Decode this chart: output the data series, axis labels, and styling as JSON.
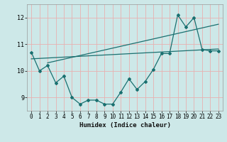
{
  "xlabel": "Humidex (Indice chaleur)",
  "ylabel": "",
  "bg_color": "#cde8e8",
  "grid_color": "#e8b0b0",
  "line_color": "#1a7070",
  "xlim": [
    -0.5,
    23.5
  ],
  "ylim": [
    8.5,
    12.5
  ],
  "xticks": [
    0,
    1,
    2,
    3,
    4,
    5,
    6,
    7,
    8,
    9,
    10,
    11,
    12,
    13,
    14,
    15,
    16,
    17,
    18,
    19,
    20,
    21,
    22,
    23
  ],
  "yticks": [
    9,
    10,
    11,
    12
  ],
  "data_x": [
    0,
    1,
    2,
    3,
    4,
    5,
    6,
    7,
    8,
    9,
    10,
    11,
    12,
    13,
    14,
    15,
    16,
    17,
    18,
    19,
    20,
    21,
    22,
    23
  ],
  "data_y": [
    10.7,
    10.0,
    10.2,
    9.55,
    9.8,
    9.0,
    8.75,
    8.9,
    8.9,
    8.75,
    8.75,
    9.2,
    9.7,
    9.3,
    9.6,
    10.05,
    10.65,
    10.65,
    12.1,
    11.65,
    12.0,
    10.8,
    10.75,
    10.75
  ],
  "line1_x": [
    0,
    23
  ],
  "line1_y": [
    10.45,
    10.82
  ],
  "line2_x": [
    2,
    23
  ],
  "line2_y": [
    10.3,
    11.75
  ]
}
